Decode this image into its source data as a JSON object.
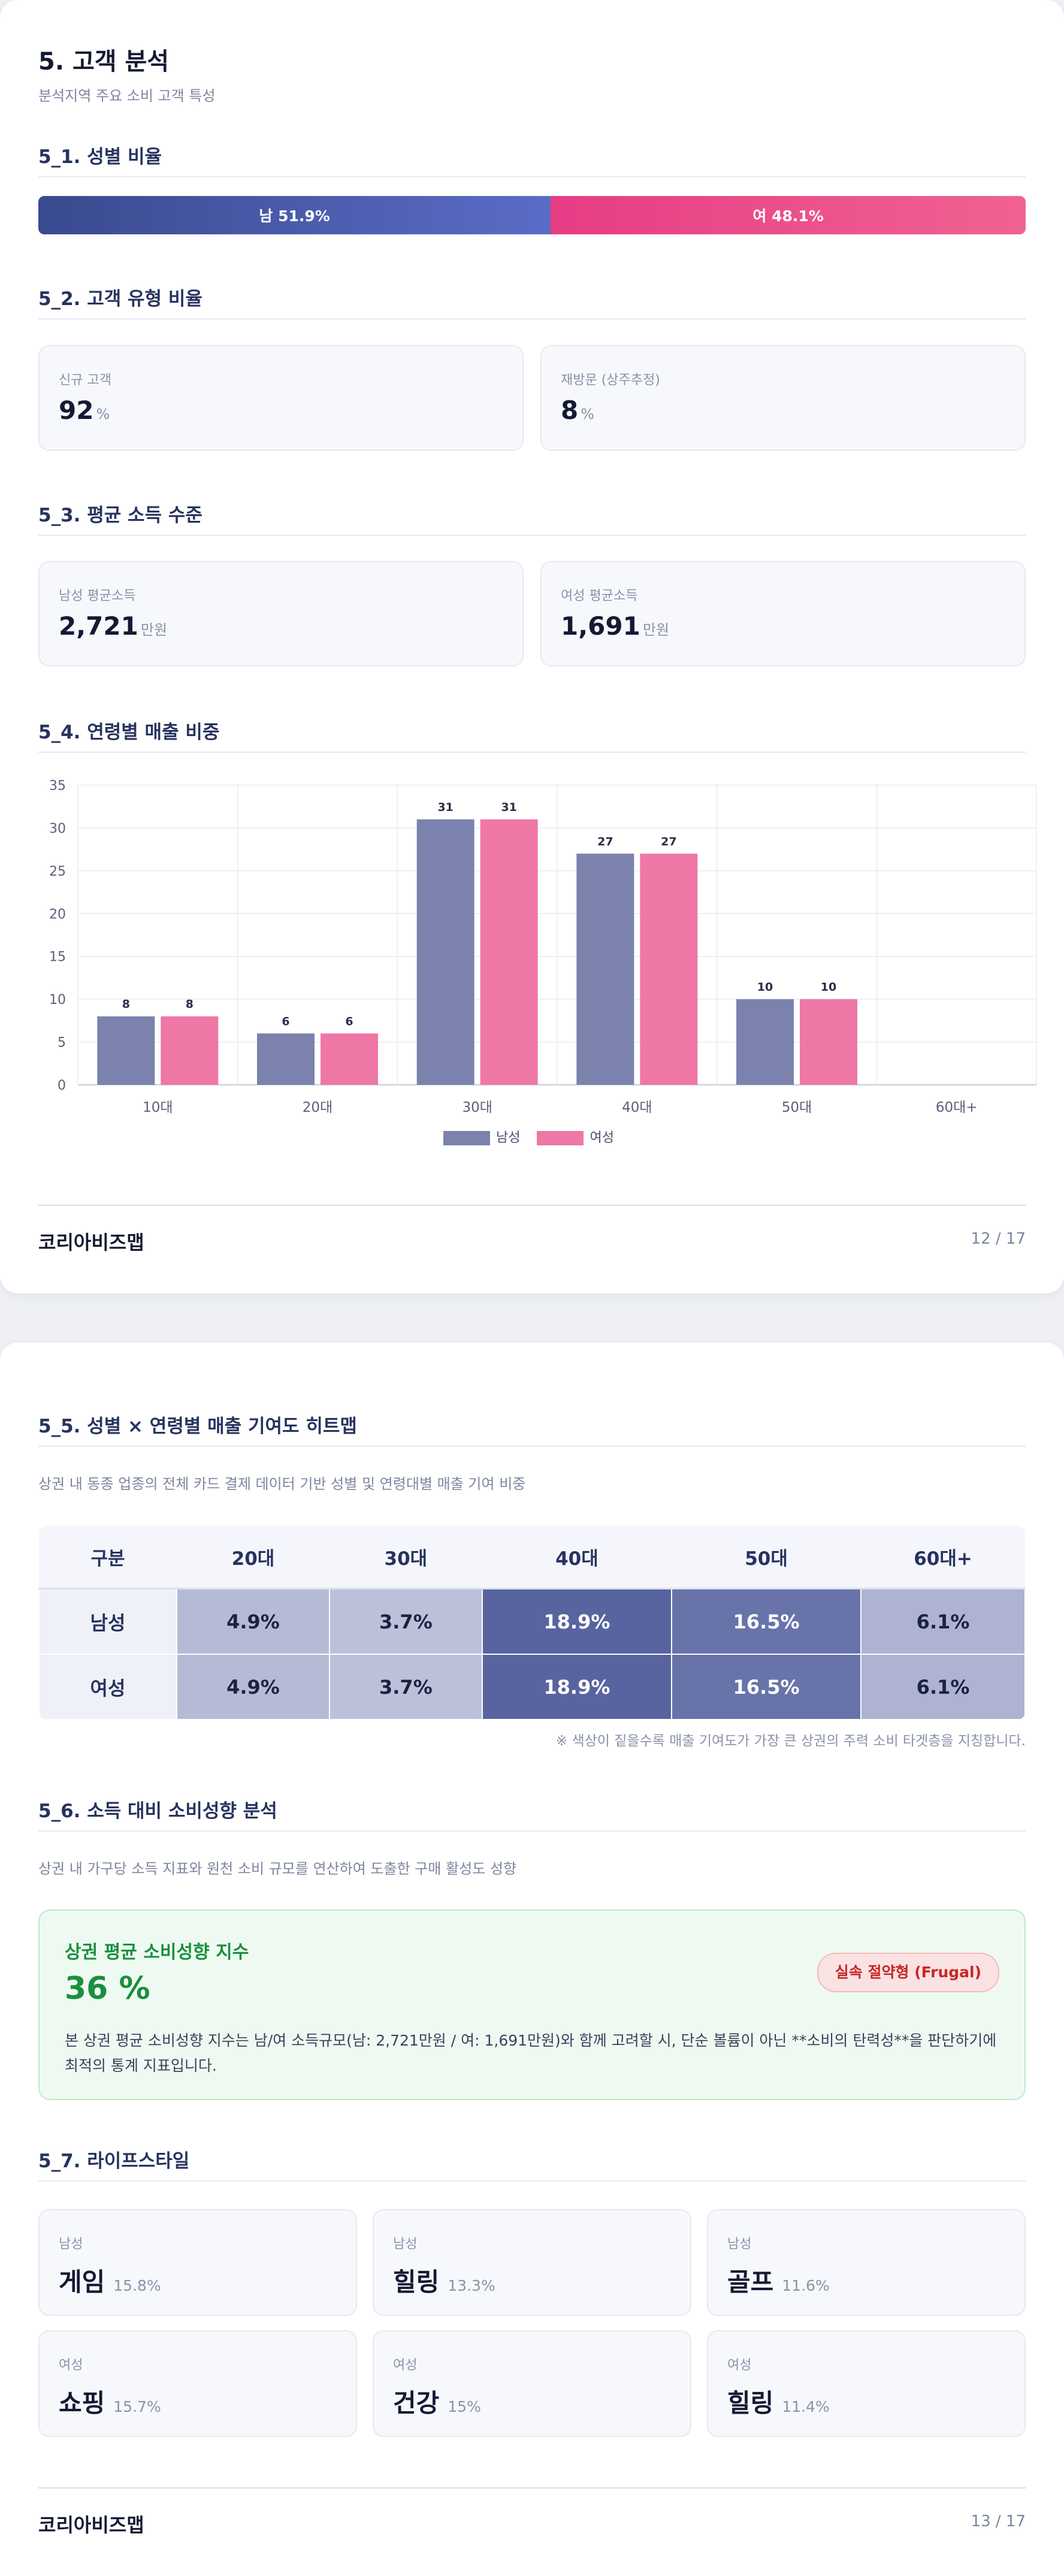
{
  "page1": {
    "title": "5. 고객 분석",
    "subtitle": "분석지역 주요 소비 고객 특성",
    "sec51": "5_1. 성별 비율",
    "gender": {
      "male_label": "남 51.9%",
      "female_label": "여 48.1%",
      "male_pct": 51.9,
      "female_pct": 48.1
    },
    "sec52": "5_2. 고객 유형 비율",
    "new_customer": {
      "label": "신규 고객",
      "value": "92",
      "unit": "%"
    },
    "revisit": {
      "label": "재방문 (상주추정)",
      "value": "8",
      "unit": "%"
    },
    "sec53": "5_3. 평균 소득 수준",
    "male_income": {
      "label": "남성 평균소득",
      "value": "2,721",
      "unit": "만원"
    },
    "female_income": {
      "label": "여성 평균소득",
      "value": "1,691",
      "unit": "만원"
    },
    "sec54": "5_4. 연령별 매출 비중",
    "footer_brand": "코리아비즈맵",
    "footer_page": "12 / 17"
  },
  "chart_data": {
    "type": "bar",
    "categories": [
      "10대",
      "20대",
      "30대",
      "40대",
      "50대",
      "60대+"
    ],
    "series": [
      {
        "name": "남성",
        "values": [
          8,
          6,
          31,
          27,
          10,
          0
        ],
        "color": "#7a82ad"
      },
      {
        "name": "여성",
        "values": [
          8,
          6,
          31,
          27,
          10,
          0
        ],
        "color": "#ee77a6"
      }
    ],
    "ylim": [
      0,
      35
    ],
    "yticks": [
      0,
      5,
      10,
      15,
      20,
      25,
      30,
      35
    ],
    "grid": true,
    "legend": "bottom-center",
    "data_labels": true
  },
  "page2": {
    "sec55": "5_5. 성별 × 연령별 매출 기여도 히트맵",
    "sec55_desc": "상권 내 동종 업종의 전체 카드 결제 데이터 기반 성별 및 연령대별 매출 기여 비중",
    "heatmap": {
      "corner": "구분",
      "columns": [
        "20대",
        "30대",
        "40대",
        "50대",
        "60대+"
      ],
      "rows": [
        {
          "label": "남성",
          "cells": [
            "4.9%",
            "3.7%",
            "18.9%",
            "16.5%",
            "6.1%"
          ]
        },
        {
          "label": "여성",
          "cells": [
            "4.9%",
            "3.7%",
            "18.9%",
            "16.5%",
            "6.1%"
          ]
        }
      ]
    },
    "heat_note": "※ 색상이 짙을수록 매출 기여도가 가장 큰 상권의 주력 소비 타겟층을 지칭합니다.",
    "sec56": "5_6. 소득 대비 소비성향 분석",
    "sec56_desc": "상권 내 가구당 소득 지표와 원천 소비 규모를 연산하여 도출한 구매 활성도 성향",
    "propensity": {
      "title": "상권 평균 소비성향 지수",
      "value": "36 %",
      "badge": "실속 절약형 (Frugal)",
      "desc": "본 상권 평균 소비성향 지수는 남/여 소득규모(남: 2,721만원 / 여: 1,691만원)와 함께 고려할 시, 단순 볼륨이 아닌 **소비의 탄력성**을 판단하기에 최적의 통계 지표입니다."
    },
    "sec57": "5_7. 라이프스타일",
    "lifestyle": [
      {
        "gender": "남성",
        "name": "게임",
        "pct": "15.8%"
      },
      {
        "gender": "남성",
        "name": "힐링",
        "pct": "13.3%"
      },
      {
        "gender": "남성",
        "name": "골프",
        "pct": "11.6%"
      },
      {
        "gender": "여성",
        "name": "쇼핑",
        "pct": "15.7%"
      },
      {
        "gender": "여성",
        "name": "건강",
        "pct": "15%"
      },
      {
        "gender": "여성",
        "name": "힐링",
        "pct": "11.4%"
      }
    ],
    "footer_brand": "코리아비즈맵",
    "footer_page": "13 / 17"
  }
}
